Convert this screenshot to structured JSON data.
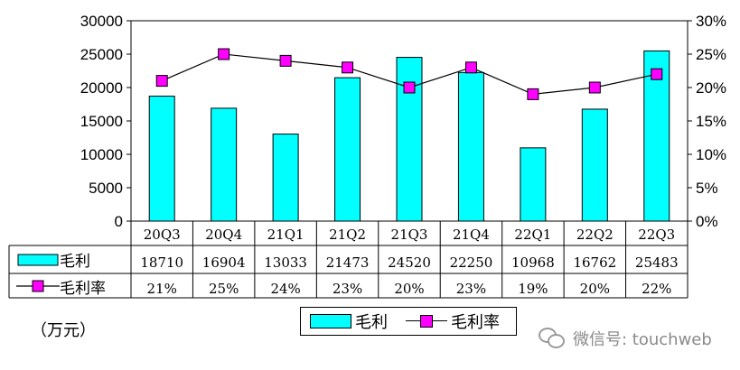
{
  "chart_data": {
    "type": "bar",
    "categories": [
      "20Q3",
      "20Q4",
      "21Q1",
      "21Q2",
      "21Q3",
      "21Q4",
      "22Q1",
      "22Q2",
      "22Q3"
    ],
    "series": [
      {
        "name": "毛利",
        "type": "bar",
        "axis": "left",
        "color": "#00ffff",
        "values": [
          18710,
          16904,
          13033,
          21473,
          24520,
          22250,
          10968,
          16762,
          25483
        ]
      },
      {
        "name": "毛利率",
        "type": "line",
        "axis": "right",
        "color": "#ff00ff",
        "values": [
          21,
          25,
          24,
          23,
          20,
          23,
          19,
          20,
          22
        ]
      }
    ],
    "y_left": {
      "min": 0,
      "max": 30000,
      "step": 5000
    },
    "y_right": {
      "min": 0,
      "max": 30,
      "step": 5,
      "suffix": "%"
    },
    "table": {
      "rows": [
        {
          "label": "毛利",
          "cells": [
            "18710",
            "16904",
            "13033",
            "21473",
            "24520",
            "22250",
            "10968",
            "16762",
            "25483"
          ]
        },
        {
          "label": "毛利率",
          "cells": [
            "21%",
            "25%",
            "24%",
            "23%",
            "20%",
            "23%",
            "19%",
            "20%",
            "22%"
          ]
        }
      ]
    },
    "unit_label": "（万元）",
    "legend": {
      "position": "bottom-center",
      "items": [
        "毛利",
        "毛利率"
      ]
    },
    "grid": false
  },
  "watermark": {
    "text": "微信号: touchweb",
    "icon": "wechat-icon"
  }
}
